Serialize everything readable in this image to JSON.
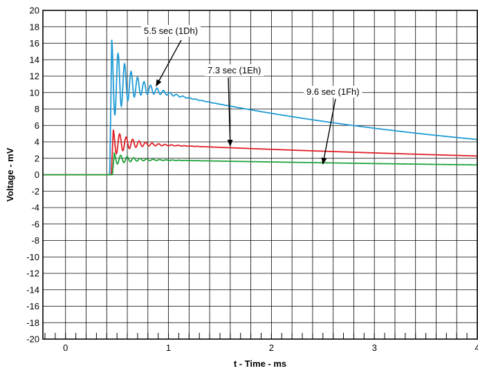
{
  "chart_data": {
    "type": "line",
    "title": "",
    "xlabel": "t - Time - ms",
    "ylabel": "Voltage - mV",
    "xlim": [
      -0.22,
      4.0
    ],
    "ylim": [
      -20,
      20
    ],
    "grid": true,
    "x_ticks": [
      {
        "value": 0,
        "label": "0"
      },
      {
        "value": 1,
        "label": "1"
      },
      {
        "value": 2,
        "label": "2"
      },
      {
        "value": 3,
        "label": "3"
      },
      {
        "value": 4,
        "label": "4"
      }
    ],
    "y_ticks": [
      {
        "value": 20,
        "label": "20"
      },
      {
        "value": 18,
        "label": "18"
      },
      {
        "value": 16,
        "label": "16"
      },
      {
        "value": 14,
        "label": "14"
      },
      {
        "value": 12,
        "label": "12"
      },
      {
        "value": 10,
        "label": "10"
      },
      {
        "value": 8,
        "label": "8"
      },
      {
        "value": 6,
        "label": "6"
      },
      {
        "value": 4,
        "label": "4"
      },
      {
        "value": 2,
        "label": "2"
      },
      {
        "value": 0,
        "label": "0"
      },
      {
        "value": -2,
        "label": "-2"
      },
      {
        "value": -4,
        "label": "-4"
      },
      {
        "value": -6,
        "label": "-6"
      },
      {
        "value": -8,
        "label": "-8"
      },
      {
        "value": -10,
        "label": "-10"
      },
      {
        "value": -12,
        "label": "-12"
      },
      {
        "value": -14,
        "label": "-14"
      },
      {
        "value": -16,
        "label": "-16"
      },
      {
        "value": -18,
        "label": "-18"
      },
      {
        "value": -20,
        "label": "-20"
      }
    ],
    "series": [
      {
        "color": "#1e9ad6",
        "step_time": 0.43,
        "peak": 15.8,
        "level_after": 11.5,
        "tau": 3.6,
        "ring_amp": 5.0,
        "ring_period": 0.063,
        "ring_decay": 0.17
      },
      {
        "color": "#e01e24",
        "step_time": 0.445,
        "peak": 5.3,
        "level_after": 3.9,
        "tau": 6.6,
        "ring_amp": 1.6,
        "ring_period": 0.063,
        "ring_decay": 0.17
      },
      {
        "color": "#1fa33a",
        "step_time": 0.455,
        "peak": 2.5,
        "level_after": 1.9,
        "tau": 7.6,
        "ring_amp": 0.7,
        "ring_period": 0.063,
        "ring_decay": 0.17
      }
    ],
    "annotations": [
      {
        "text": "5.5 sec (1Dh)",
        "series_index": 0,
        "point_x": 0.88,
        "point_y": 10.8
      },
      {
        "text": "7.3 sec (1Eh)",
        "series_index": 1,
        "point_x": 1.6,
        "point_y": 3.5
      },
      {
        "text": "9.6 sec (1Fh)",
        "series_index": 2,
        "point_x": 2.5,
        "point_y": 1.3
      }
    ]
  }
}
